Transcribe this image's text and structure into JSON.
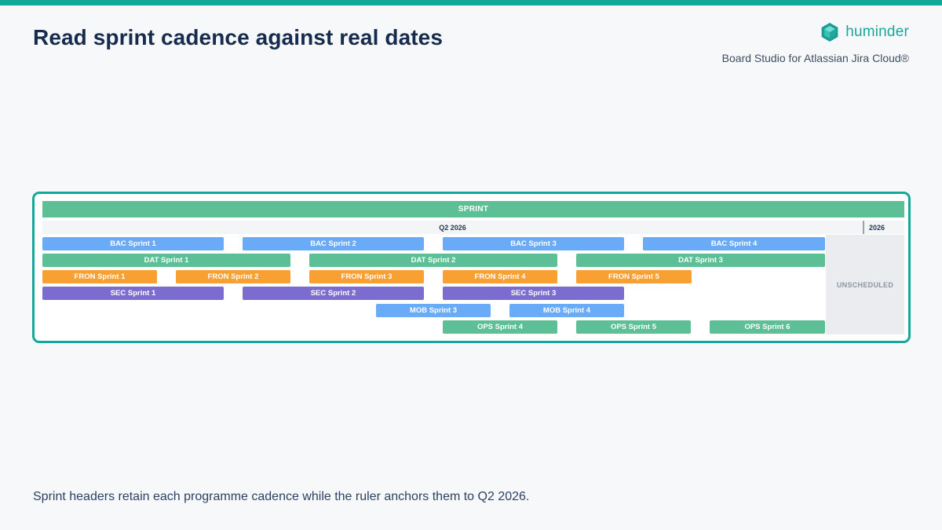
{
  "header": {
    "title": "Read sprint cadence against real dates",
    "brand_name": "huminder",
    "subtitle": "Board Studio for Atlassian Jira Cloud®"
  },
  "board": {
    "sprint_header": "SPRINT",
    "ruler_quarter": "Q2 2026",
    "ruler_next": "2026",
    "unscheduled_label": "UNSCHEDULED",
    "rows": {
      "bac": [
        "BAC Sprint 1",
        "BAC Sprint 2",
        "BAC Sprint 3",
        "BAC Sprint 4"
      ],
      "dat": [
        "DAT Sprint 1",
        "DAT Sprint 2",
        "DAT Sprint 3"
      ],
      "fron": [
        "FRON Sprint 1",
        "FRON Sprint 2",
        "FRON Sprint 3",
        "FRON Sprint 4",
        "FRON Sprint 5"
      ],
      "sec": [
        "SEC Sprint 1",
        "SEC Sprint 2",
        "SEC Sprint 3"
      ],
      "mob": [
        "MOB Sprint 3",
        "MOB Sprint 4"
      ],
      "ops": [
        "OPS Sprint 4",
        "OPS Sprint 5",
        "OPS Sprint 6"
      ]
    }
  },
  "footer": {
    "caption": "Sprint headers retain each programme cadence while the ruler anchors them to Q2 2026."
  },
  "colors": {
    "accent": "#12a99a",
    "bac": "#6aabf7",
    "dat": "#5cbf95",
    "fron": "#f8a031",
    "sec": "#7b6ccf",
    "mob": "#6aabf7",
    "ops": "#5cbf95"
  },
  "icons": {
    "brand": "huminder-hexagon-logo-icon"
  }
}
